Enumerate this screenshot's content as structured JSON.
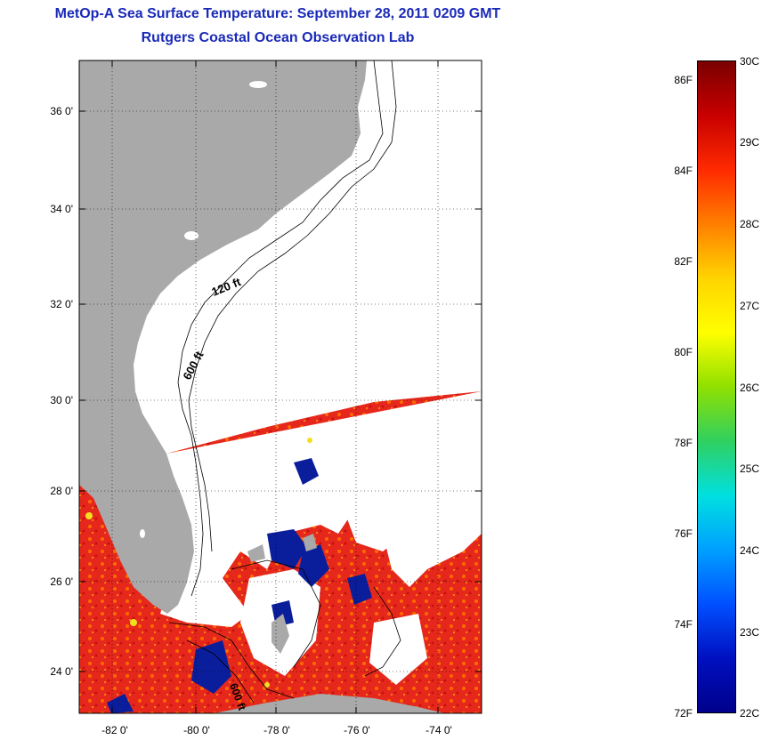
{
  "title": {
    "line1": "MetOp-A Sea Surface Temperature:  September 28, 2011 0209 GMT",
    "line2": "Rutgers Coastal Ocean Observation Lab"
  },
  "map": {
    "lat_labels": [
      "36 0'",
      "34 0'",
      "32 0'",
      "30 0'",
      "28 0'",
      "26 0'",
      "24 0'"
    ],
    "lon_labels": [
      "-82 0'",
      "-80 0'",
      "-78 0'",
      "-76 0'",
      "-74 0'"
    ],
    "contour_labels": [
      "120 ft",
      "600 ft",
      "600 ft"
    ],
    "colors": {
      "land": "#a9a9a9",
      "no_data": "#ffffff",
      "warm": "#e8231a",
      "cold": "#0a1e9c"
    }
  },
  "colorbar": {
    "fahrenheit_labels": [
      "86F",
      "84F",
      "82F",
      "80F",
      "78F",
      "76F",
      "74F",
      "72F"
    ],
    "celsius_labels": [
      "30C",
      "29C",
      "28C",
      "27C",
      "26C",
      "25C",
      "24C",
      "23C",
      "22C"
    ],
    "range_c": [
      22,
      30
    ],
    "gradient": [
      "#7a0000",
      "#c80000",
      "#ff2a00",
      "#ff7f00",
      "#ffd400",
      "#ffff00",
      "#8fe000",
      "#30d060",
      "#00e0e0",
      "#00a0ff",
      "#0050ff",
      "#0010c0",
      "#00008a"
    ]
  }
}
